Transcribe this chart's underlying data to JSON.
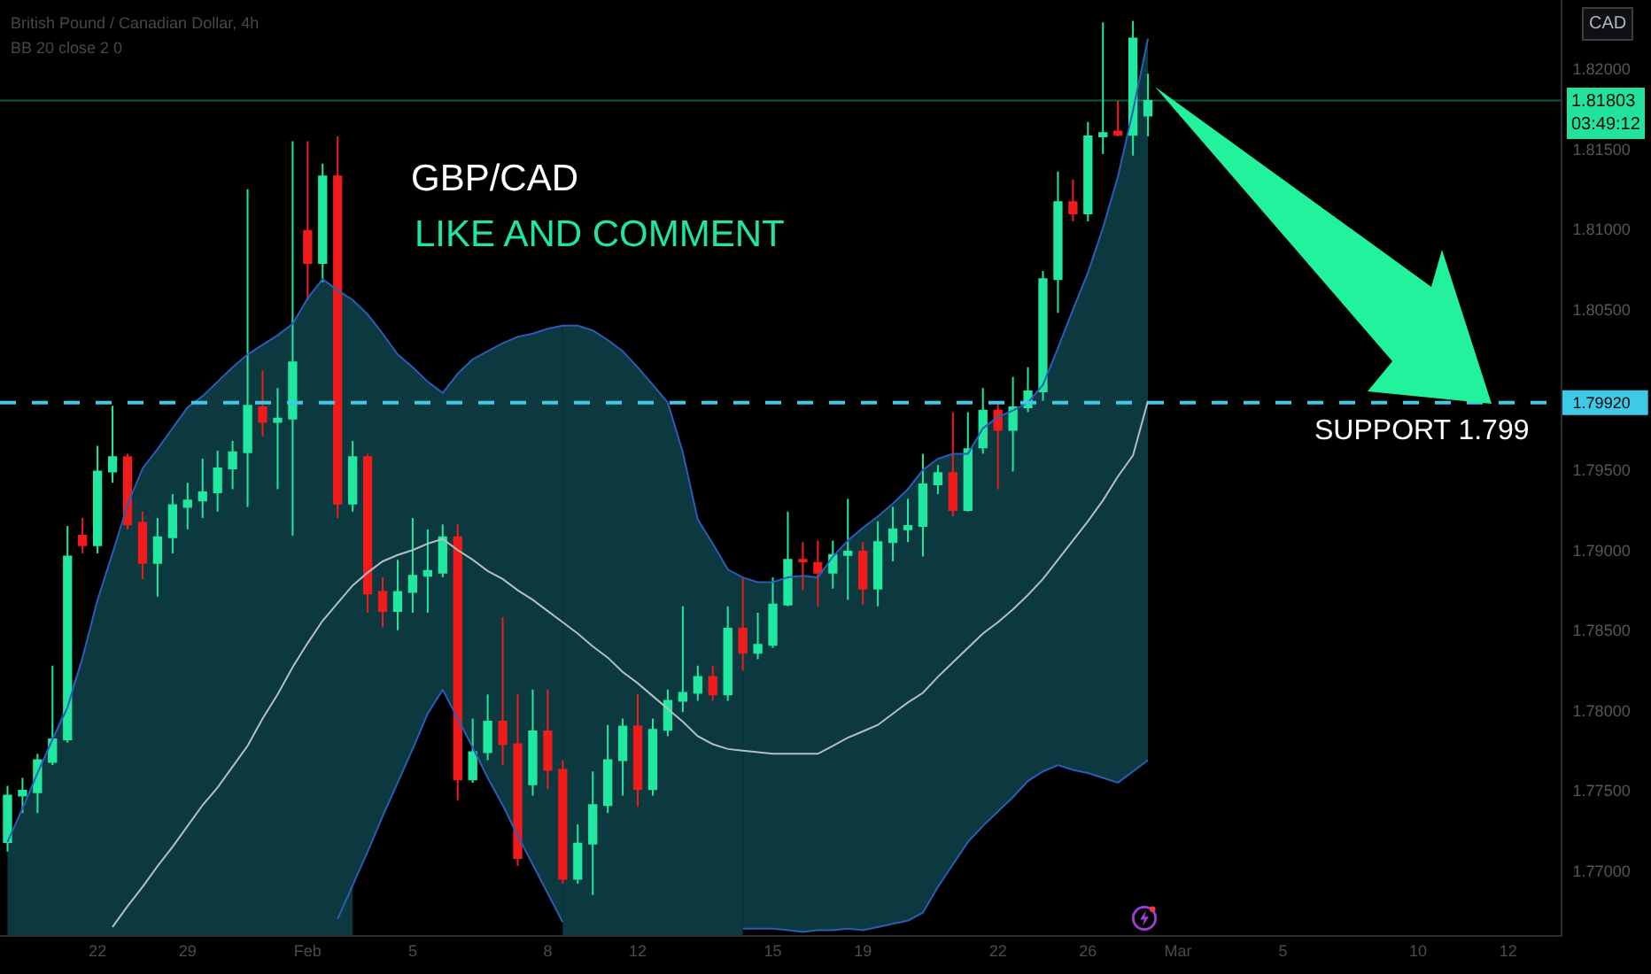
{
  "chart_data": {
    "type": "candlestick",
    "title": "GBP/CAD",
    "subtitle": "LIKE AND COMMENT",
    "ylabel": "CAD",
    "categories": [
      null,
      null,
      null,
      null,
      null,
      null,
      "22",
      null,
      null,
      null,
      null,
      null,
      "29",
      null,
      null,
      null,
      null,
      null,
      null,
      null,
      "Feb",
      null,
      null,
      null,
      null,
      null,
      null,
      "5",
      null,
      null,
      null,
      null,
      null,
      null,
      null,
      null,
      "8",
      null,
      null,
      null,
      null,
      null,
      "12",
      null,
      null,
      null,
      null,
      null,
      null,
      null,
      null,
      "15",
      null,
      null,
      null,
      null,
      null,
      "19",
      null,
      null,
      null,
      null,
      null,
      null,
      null,
      null,
      "22",
      null,
      null,
      null,
      null,
      null,
      "26",
      null,
      null,
      null,
      null,
      null,
      "Mar",
      null,
      null,
      null,
      null,
      null,
      null,
      "5",
      null,
      null,
      null,
      null,
      null,
      null,
      null,
      null,
      "10",
      null,
      null,
      null,
      null,
      null,
      "12",
      null,
      null,
      null
    ],
    "ohlc": [
      [
        1.7718,
        1.7753,
        1.7712,
        1.7747
      ],
      [
        1.7747,
        1.7758,
        1.7736,
        1.775
      ],
      [
        1.7749,
        1.7773,
        1.7736,
        1.7769
      ],
      [
        1.7768,
        1.7828,
        1.7766,
        1.7782
      ],
      [
        1.7782,
        1.7915,
        1.778,
        1.7896
      ],
      [
        1.7909,
        1.792,
        1.7898,
        1.7903
      ],
      [
        1.7903,
        1.7965,
        1.7898,
        1.7949
      ],
      [
        1.7949,
        1.799,
        1.7942,
        1.7958
      ],
      [
        1.7958,
        1.796,
        1.7913,
        1.7916
      ],
      [
        1.7917,
        1.7924,
        1.7882,
        1.7892
      ],
      [
        1.7892,
        1.792,
        1.7871,
        1.7908
      ],
      [
        1.7908,
        1.7935,
        1.7898,
        1.7928
      ],
      [
        1.7927,
        1.7942,
        1.7913,
        1.7931
      ],
      [
        1.7931,
        1.7957,
        1.792,
        1.7936
      ],
      [
        1.7936,
        1.7962,
        1.7924,
        1.7951
      ],
      [
        1.7951,
        1.7968,
        1.7938,
        1.7961
      ],
      [
        1.7961,
        1.8125,
        1.7927,
        1.799
      ],
      [
        1.7989,
        1.8012,
        1.7971,
        1.798
      ],
      [
        1.798,
        1.8001,
        1.7938,
        1.7982
      ],
      [
        1.7982,
        1.8155,
        1.7909,
        1.8017
      ],
      [
        1.8099,
        1.8155,
        1.8056,
        1.8079
      ],
      [
        1.8079,
        1.8141,
        1.8067,
        1.8133
      ],
      [
        1.8133,
        1.8158,
        1.792,
        1.7929
      ],
      [
        1.7929,
        1.7968,
        1.7924,
        1.7958
      ],
      [
        1.7958,
        1.796,
        1.7861,
        1.7873
      ],
      [
        1.7874,
        1.7883,
        1.7852,
        1.7862
      ],
      [
        1.7862,
        1.7894,
        1.785,
        1.7874
      ],
      [
        1.7874,
        1.792,
        1.7861,
        1.7884
      ],
      [
        1.7884,
        1.7913,
        1.7861,
        1.7887
      ],
      [
        1.7886,
        1.7916,
        1.7883,
        1.7908
      ],
      [
        1.7908,
        1.7916,
        1.7744,
        1.7757
      ],
      [
        1.7757,
        1.7795,
        1.7755,
        1.7774
      ],
      [
        1.7774,
        1.781,
        1.7769,
        1.7793
      ],
      [
        1.7793,
        1.7858,
        1.7766,
        1.7779
      ],
      [
        1.7779,
        1.781,
        1.7703,
        1.7708
      ],
      [
        1.7754,
        1.7813,
        1.7747,
        1.7787
      ],
      [
        1.7787,
        1.7813,
        1.7751,
        1.7763
      ],
      [
        1.7763,
        1.7769,
        1.7692,
        1.7695
      ],
      [
        1.7695,
        1.7729,
        1.7692,
        1.7717
      ],
      [
        1.7717,
        1.7762,
        1.7685,
        1.7741
      ],
      [
        1.7741,
        1.7791,
        1.7736,
        1.7769
      ],
      [
        1.7769,
        1.7795,
        1.7747,
        1.779
      ],
      [
        1.779,
        1.781,
        1.774,
        1.7751
      ],
      [
        1.7751,
        1.7795,
        1.7747,
        1.7788
      ],
      [
        1.7788,
        1.7813,
        1.7784,
        1.7806
      ],
      [
        1.7806,
        1.7865,
        1.7799,
        1.7811
      ],
      [
        1.7811,
        1.7828,
        1.7806,
        1.7821
      ],
      [
        1.7821,
        1.7828,
        1.7806,
        1.781
      ],
      [
        1.781,
        1.7865,
        1.7806,
        1.7851
      ],
      [
        1.7851,
        1.7883,
        1.7825,
        1.7836
      ],
      [
        1.7836,
        1.7861,
        1.7832,
        1.7841
      ],
      [
        1.7841,
        1.7883,
        1.7839,
        1.7866
      ],
      [
        1.7866,
        1.7924,
        1.7865,
        1.7894
      ],
      [
        1.7894,
        1.7905,
        1.7875,
        1.7893
      ],
      [
        1.7892,
        1.7906,
        1.7865,
        1.7886
      ],
      [
        1.7886,
        1.7906,
        1.7876,
        1.7897
      ],
      [
        1.7897,
        1.7932,
        1.7869,
        1.7899
      ],
      [
        1.7899,
        1.7905,
        1.7866,
        1.7876
      ],
      [
        1.7876,
        1.7918,
        1.7865,
        1.7905
      ],
      [
        1.7905,
        1.7927,
        1.7893,
        1.7913
      ],
      [
        1.7913,
        1.7932,
        1.7905,
        1.7915
      ],
      [
        1.7915,
        1.796,
        1.7896,
        1.7941
      ],
      [
        1.7941,
        1.7953,
        1.7935,
        1.7948
      ],
      [
        1.7948,
        1.7986,
        1.7921,
        1.7925
      ],
      [
        1.7925,
        1.7986,
        1.7924,
        1.7963
      ],
      [
        1.7964,
        1.8001,
        1.796,
        1.7987
      ],
      [
        1.7987,
        1.7993,
        1.7938,
        1.7975
      ],
      [
        1.7975,
        1.8008,
        1.7949,
        1.7989
      ],
      [
        1.7989,
        1.8014,
        1.7986,
        1.7999
      ],
      [
        1.7999,
        1.8074,
        1.7993,
        1.8069
      ],
      [
        1.8069,
        1.8136,
        1.8048,
        1.8117
      ],
      [
        1.8117,
        1.8131,
        1.8105,
        1.811
      ],
      [
        1.811,
        1.8167,
        1.8105,
        1.8158
      ],
      [
        1.8158,
        1.8229,
        1.8147,
        1.816
      ],
      [
        1.8161,
        1.818,
        1.8158,
        1.8159
      ],
      [
        1.8159,
        1.823,
        1.8146,
        1.8219
      ],
      [
        1.8171,
        1.8197,
        1.8158,
        1.818
      ],
      null,
      null,
      null,
      null,
      null,
      null,
      null,
      null,
      null,
      null,
      null,
      null,
      null,
      null,
      null,
      null,
      null,
      null,
      null,
      null,
      null,
      null,
      null,
      null,
      null,
      null,
      null
    ],
    "colors": [
      "#21e89f",
      "#21e89f",
      "#21e89f",
      "#21e89f",
      "#21e89f",
      "#f21b1b",
      "#21e89f",
      "#21e89f",
      "#f21b1b",
      "#f21b1b",
      "#21e89f",
      "#21e89f",
      "#21e89f",
      "#21e89f",
      "#21e89f",
      "#21e89f",
      "#21e89f",
      "#f21b1b",
      "#21e89f",
      "#21e89f",
      "#f21b1b",
      "#21e89f",
      "#f21b1b",
      "#21e89f",
      "#f21b1b",
      "#f21b1b",
      "#21e89f",
      "#21e89f",
      "#21e89f",
      "#21e89f",
      "#f21b1b",
      "#21e89f",
      "#21e89f",
      "#f21b1b",
      "#f21b1b",
      "#21e89f",
      "#f21b1b",
      "#f21b1b",
      "#21e89f",
      "#21e89f",
      "#21e89f",
      "#21e89f",
      "#f21b1b",
      "#21e89f",
      "#21e89f",
      "#21e89f",
      "#21e89f",
      "#f21b1b",
      "#21e89f",
      "#f21b1b",
      "#21e89f",
      "#21e89f",
      "#21e89f",
      "#f21b1b",
      "#f21b1b",
      "#21e89f",
      "#21e89f",
      "#f21b1b",
      "#21e89f",
      "#21e89f",
      "#21e89f",
      "#21e89f",
      "#21e89f",
      "#f21b1b",
      "#21e89f",
      "#21e89f",
      "#f21b1b",
      "#21e89f",
      "#21e89f",
      "#21e89f",
      "#21e89f",
      "#f21b1b",
      "#21e89f",
      "#21e89f",
      "#f21b1b",
      "#21e89f",
      "#21e89f",
      null,
      null,
      null,
      null,
      null,
      null,
      null,
      null,
      null,
      null,
      null,
      null,
      null,
      null,
      null,
      null,
      null,
      null,
      null,
      null,
      null,
      null,
      null,
      null,
      null,
      null,
      null
    ],
    "series": [
      {
        "type": "area",
        "color": "#0b393f",
        "values": [
          1.7718,
          1.7739,
          null,
          1.7782,
          null,
          1.7833,
          1.7869,
          1.7898,
          null,
          1.7951,
          1.7963,
          1.7976,
          1.7989,
          1.7996,
          1.8005,
          1.8014,
          1.8022,
          1.8028,
          1.8034,
          1.8041,
          1.8057,
          1.8069,
          null,
          1.8056,
          null,
          null,
          null,
          null,
          null,
          null,
          null,
          null,
          null,
          null,
          null,
          null,
          null,
          1.804,
          1.804,
          1.8037,
          1.8031,
          1.8024,
          1.8014,
          1.8003,
          1.7992,
          1.7961,
          1.7919,
          1.7904,
          1.7888,
          1.7883,
          null,
          null,
          null,
          null,
          null,
          null,
          null,
          null,
          null,
          null,
          null,
          null,
          null,
          null,
          null,
          null,
          null,
          null,
          null,
          null,
          null,
          null,
          null,
          null,
          null,
          null,
          null,
          null,
          null,
          null,
          null,
          null,
          null,
          null,
          null,
          null,
          null,
          null,
          null,
          null,
          null,
          null,
          null,
          null,
          null,
          null,
          null,
          null,
          null,
          null,
          null,
          null,
          null,
          null
        ]
      },
      {
        "type": "line",
        "color": "#2b5cb8",
        "values": [
          1.7718,
          1.7739,
          1.7761,
          1.7782,
          1.7802,
          1.7833,
          1.7869,
          1.7898,
          1.7928,
          1.7951,
          1.7963,
          1.7976,
          1.7989,
          1.7996,
          1.8005,
          1.8014,
          1.8022,
          1.8028,
          1.8034,
          1.8041,
          1.8057,
          1.8069,
          1.8062,
          1.8056,
          1.8047,
          1.8035,
          1.8022,
          1.8014,
          1.8005,
          1.7998,
          1.801,
          1.8019,
          1.8024,
          1.8029,
          1.8033,
          1.8035,
          1.8038,
          1.804,
          1.804,
          1.8037,
          1.8031,
          1.8024,
          1.8014,
          1.8003,
          1.7992,
          1.7961,
          1.7919,
          1.7904,
          1.7888,
          1.7883,
          1.788,
          1.788,
          1.7883,
          1.7884,
          1.7883,
          1.7896,
          1.7906,
          1.7914,
          1.7921,
          1.7929,
          1.7938,
          1.795,
          1.7957,
          1.796,
          1.796,
          1.7976,
          1.7983,
          1.7987,
          1.7992,
          1.8003,
          1.8026,
          1.805,
          1.8073,
          1.8101,
          1.8133,
          1.8174,
          1.8219,
          null,
          null,
          null,
          null,
          null,
          null,
          null,
          null,
          null,
          null,
          null,
          null,
          null,
          null,
          null,
          null,
          null,
          null,
          null,
          null,
          null,
          null,
          null,
          null,
          null,
          null,
          null
        ]
      },
      {
        "type": "line",
        "color": "#2b5cb8",
        "values": [
          null,
          null,
          null,
          null,
          null,
          null,
          null,
          null,
          null,
          null,
          null,
          null,
          null,
          null,
          null,
          null,
          null,
          null,
          null,
          null,
          null,
          null,
          1.767,
          1.7691,
          1.7712,
          1.7734,
          1.7755,
          1.7776,
          1.7798,
          1.7813,
          1.7795,
          1.7777,
          1.7758,
          1.7741,
          1.7722,
          1.7704,
          1.7686,
          1.7668,
          null,
          null,
          null,
          null,
          null,
          null,
          null,
          null,
          null,
          null,
          null,
          1.7664,
          1.7664,
          1.7664,
          1.7663,
          1.7662,
          1.7663,
          1.7663,
          1.7664,
          1.7663,
          1.7665,
          1.7667,
          1.7669,
          1.7674,
          1.769,
          1.7704,
          1.7718,
          1.7728,
          1.7737,
          1.7746,
          1.7756,
          1.7762,
          1.7766,
          1.7763,
          1.7761,
          1.7758,
          1.7755,
          1.7762,
          1.7769,
          null,
          null,
          null,
          null,
          null,
          null,
          null,
          null,
          null,
          null,
          null,
          null,
          null,
          null,
          null,
          null,
          null,
          null,
          null,
          null,
          null,
          null,
          null,
          null,
          null,
          null,
          null
        ]
      },
      {
        "type": "line",
        "color": "#b4bfc3",
        "values": [
          null,
          null,
          null,
          null,
          null,
          null,
          null,
          1.7665,
          1.7678,
          1.769,
          1.7703,
          1.7715,
          1.7728,
          1.7741,
          1.7752,
          1.7765,
          1.7778,
          1.7795,
          1.781,
          1.7827,
          1.7842,
          1.7856,
          1.7867,
          1.7878,
          1.7886,
          1.7893,
          1.7897,
          1.79,
          1.7904,
          1.7907,
          1.79,
          1.7894,
          1.7887,
          1.7882,
          1.7875,
          1.7869,
          1.7862,
          1.7855,
          1.7848,
          1.784,
          1.7833,
          1.7824,
          1.7817,
          1.7809,
          1.7801,
          1.7793,
          1.7784,
          1.7779,
          1.7776,
          1.7775,
          1.7774,
          1.7773,
          1.7773,
          1.7773,
          1.7773,
          1.7778,
          1.7783,
          1.7787,
          1.7791,
          1.7798,
          1.7805,
          1.7811,
          1.7821,
          1.783,
          1.7839,
          1.7848,
          1.7855,
          1.7863,
          1.7872,
          1.7882,
          1.7894,
          1.7906,
          1.7918,
          1.7931,
          1.7946,
          1.7959,
          1.7993,
          null,
          null,
          null,
          null,
          null,
          null,
          null,
          null,
          null,
          null,
          null,
          null,
          null,
          null,
          null,
          null,
          null,
          null,
          null,
          null,
          null,
          null,
          null,
          null,
          null,
          null,
          null
        ],
        "lower": [
          null,
          null,
          null,
          null,
          null,
          null,
          null,
          null,
          null,
          null,
          null,
          null,
          null,
          null,
          null,
          null,
          null,
          null,
          null,
          null,
          null,
          null,
          1.767,
          1.7691,
          1.7712,
          1.7734,
          1.7755,
          1.7776,
          1.7798,
          1.7813,
          1.7795,
          1.7777,
          1.7758,
          1.7741,
          1.7722,
          1.7704,
          1.7686,
          1.7668,
          null,
          null,
          null,
          null,
          null,
          null,
          null,
          null,
          null,
          null,
          null,
          1.7664,
          1.7664,
          1.7664,
          1.7663,
          1.7662,
          1.7663,
          1.7663,
          1.7664,
          1.7663,
          1.7665,
          1.7667,
          1.7669,
          1.7674,
          1.769,
          1.7704,
          1.7718,
          1.7728,
          1.7737,
          1.7746,
          1.7756,
          1.7762,
          1.7766,
          1.7763,
          1.7761,
          1.7758,
          1.7755,
          1.7762,
          1.7769,
          null,
          null,
          null,
          null,
          null,
          null,
          null,
          null,
          null,
          null,
          null,
          null,
          null,
          null,
          null,
          null,
          null,
          null,
          null,
          null,
          null,
          null,
          null,
          null,
          null,
          null,
          null
        ],
        "upper": [
          null,
          null,
          null,
          null,
          null,
          null,
          null,
          null,
          null,
          null,
          null,
          null,
          null,
          null,
          null,
          null,
          null,
          null,
          null,
          null,
          null,
          null,
          1.8062,
          1.8056,
          1.8047,
          1.8035,
          1.8022,
          1.8014,
          1.8005,
          1.7998,
          1.801,
          1.8019,
          1.8024,
          1.8029,
          1.8033,
          1.8035,
          1.8038,
          1.804,
          null,
          null,
          null,
          null,
          null,
          null,
          null,
          null,
          null,
          null,
          null,
          1.7883,
          1.788,
          1.788,
          1.7883,
          1.7884,
          1.7883,
          1.7896,
          1.7906,
          1.7914,
          1.7921,
          1.7929,
          1.7938,
          1.795,
          1.7957,
          1.796,
          1.796,
          1.7976,
          1.7983,
          1.7987,
          1.7992,
          1.8003,
          1.8026,
          1.805,
          1.8073,
          1.8101,
          1.8133,
          1.8174,
          1.8219,
          null,
          null,
          null,
          null,
          null,
          null,
          null,
          null,
          null,
          null,
          null,
          null,
          null,
          null,
          null,
          null,
          null,
          null,
          null,
          null,
          null,
          null,
          null,
          null,
          null,
          null,
          null
        ]
      }
    ],
    "ylim": [
      1.766,
      1.8243
    ],
    "yticks": [
      {
        "value": 1.77,
        "label": "1.77000"
      },
      {
        "value": 1.775,
        "label": "1.77500"
      },
      {
        "value": 1.78,
        "label": "1.78000"
      },
      {
        "value": 1.785,
        "label": "1.78500"
      },
      {
        "value": 1.79,
        "label": "1.79000"
      },
      {
        "value": 1.795,
        "label": "1.79500"
      },
      {
        "value": 1.7992,
        "label": "1.79920"
      },
      {
        "value": 1.805,
        "label": "1.80500"
      },
      {
        "value": 1.81,
        "label": "1.81000"
      },
      {
        "value": 1.815,
        "label": "1.81500"
      },
      {
        "value": 1.82,
        "label": "1.82000"
      }
    ],
    "ref_lines": [
      {
        "axis": "y",
        "value": 1.7992,
        "label": "SUPPORT 1.799",
        "color": "#3ec9e6",
        "line_style": "dashed"
      },
      {
        "axis": "y",
        "value": 1.81803,
        "label": "1.81803\n03:49:12",
        "color": "#22e39b",
        "line_style": "solid"
      }
    ],
    "annotations": [
      "British Pound / Canadian Dollar, 4h",
      "BB 20 close 2 0"
    ],
    "grid": false
  }
}
